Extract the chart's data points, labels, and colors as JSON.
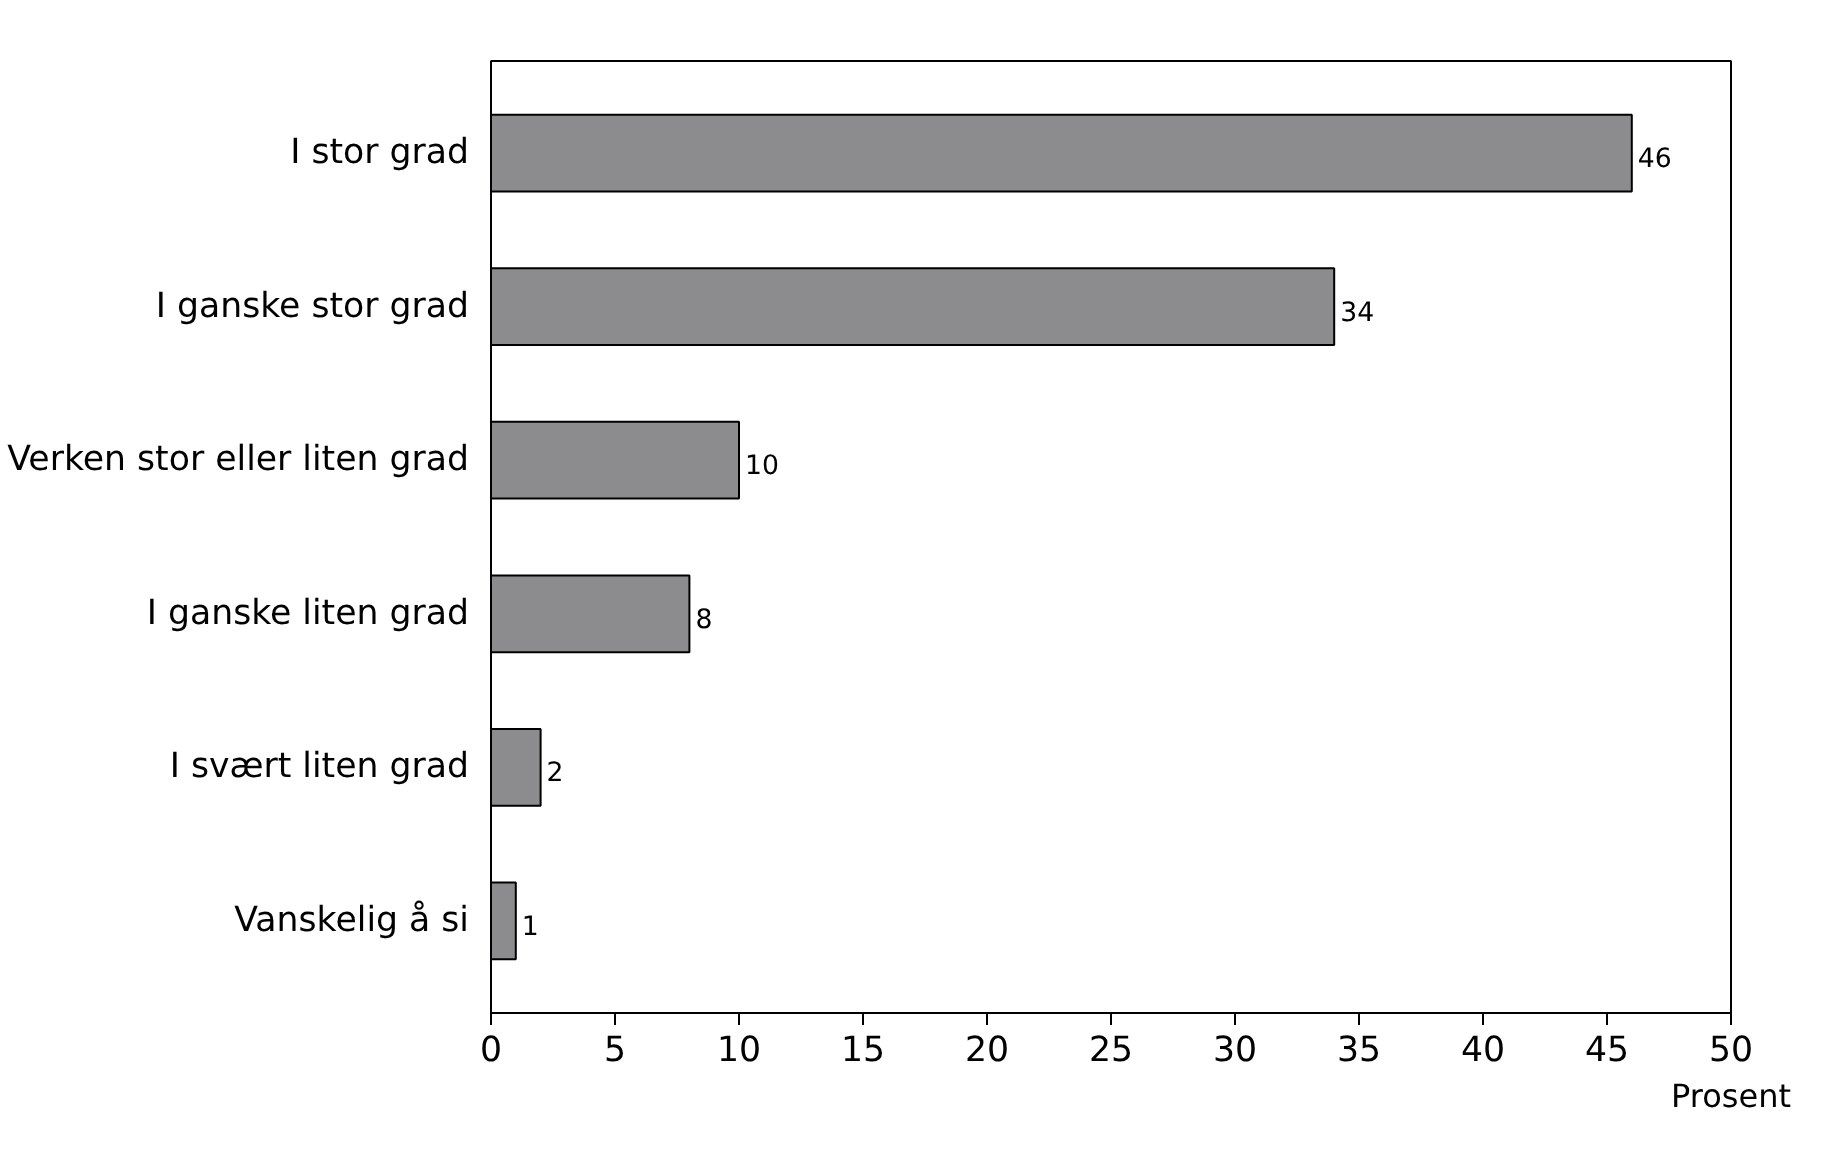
{
  "chart_data": {
    "type": "bar",
    "orientation": "horizontal",
    "xlabel": "Prosent",
    "categories": [
      "I stor grad",
      "I ganske stor grad",
      "Verken stor eller liten grad",
      "I ganske liten grad",
      "I svært liten grad",
      "Vanskelig å si"
    ],
    "values": [
      46,
      34,
      10,
      8,
      2,
      1
    ],
    "color": "#8c8c8f",
    "data_labels": true,
    "xlim": [
      0,
      50
    ],
    "xticks": [
      0,
      5,
      10,
      15,
      20,
      25,
      30,
      35,
      40,
      45,
      50
    ],
    "grid": false
  }
}
